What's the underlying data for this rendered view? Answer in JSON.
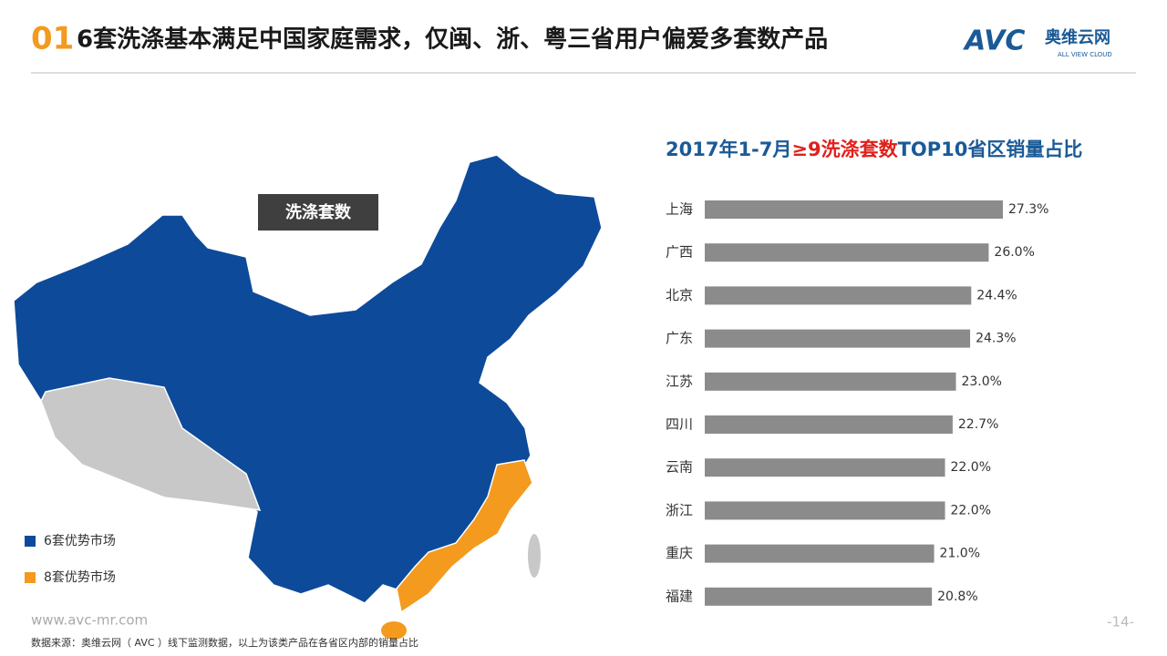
{
  "header": {
    "number": "01",
    "title": "6套洗涤基本满足中国家庭需求，仅闽、浙、粤三省用户偏爱多套数产品"
  },
  "logo": {
    "brand": "AVC",
    "name": "奥维云网",
    "tagline": "ALL VIEW CLOUD"
  },
  "map": {
    "label": "洗涤套数",
    "legend": [
      {
        "name": "6套优势市场",
        "color": "#0d4a9a"
      },
      {
        "name": "8套优势市场",
        "color": "#f39a1f"
      }
    ]
  },
  "chart_data": {
    "type": "bar",
    "orientation": "horizontal",
    "title_parts": [
      "2017年1-7月",
      "≥9洗涤套数",
      "TOP10省区销量占比"
    ],
    "categories": [
      "上海",
      "广西",
      "北京",
      "广东",
      "江苏",
      "四川",
      "云南",
      "浙江",
      "重庆",
      "福建"
    ],
    "values": [
      27.3,
      26.0,
      24.4,
      24.3,
      23.0,
      22.7,
      22.0,
      22.0,
      21.0,
      20.8
    ],
    "value_labels": [
      "27.3%",
      "26.0%",
      "24.4%",
      "24.3%",
      "23.0%",
      "22.7%",
      "22.0%",
      "22.0%",
      "21.0%",
      "20.8%"
    ],
    "color": "#8c8b8b"
  },
  "footer": {
    "website": "www.avc-mr.com",
    "source": "数据来源：奥维云网（ AVC ）线下监测数据，以上为该类产品在各省区内部的销量占比",
    "page": "-14-"
  }
}
